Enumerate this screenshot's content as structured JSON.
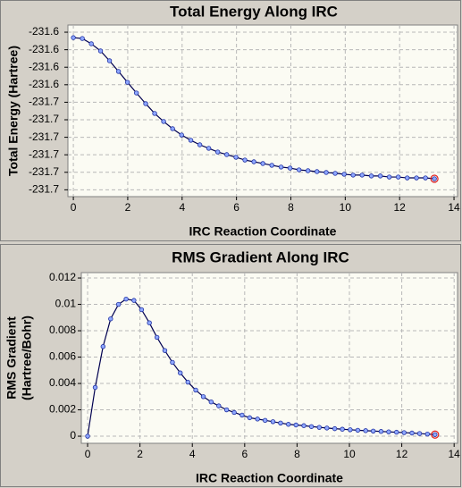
{
  "chart_data": [
    {
      "type": "line",
      "title": "Total Energy Along IRC",
      "xlabel": "IRC Reaction Coordinate",
      "ylabel": "Total Energy (Hartree)",
      "x": [
        0,
        0.33,
        0.66,
        1.0,
        1.33,
        1.66,
        1.99,
        2.32,
        2.66,
        2.99,
        3.32,
        3.65,
        3.98,
        4.32,
        4.65,
        4.98,
        5.31,
        5.64,
        5.98,
        6.31,
        6.64,
        6.97,
        7.3,
        7.64,
        7.97,
        8.3,
        8.63,
        8.96,
        9.3,
        9.63,
        9.96,
        10.29,
        10.62,
        10.96,
        11.29,
        11.62,
        11.95,
        12.28,
        12.62,
        12.95,
        13.28
      ],
      "series": [
        {
          "name": "Total Energy",
          "color": "#000050",
          "values": [
            -231.6131,
            -231.6136,
            -231.6166,
            -231.6207,
            -231.6263,
            -231.6324,
            -231.6386,
            -231.6447,
            -231.6508,
            -231.6564,
            -231.661,
            -231.6651,
            -231.6687,
            -231.6717,
            -231.6743,
            -231.6763,
            -231.6784,
            -231.6799,
            -231.6814,
            -231.683,
            -231.684,
            -231.685,
            -231.686,
            -231.687,
            -231.6876,
            -231.6886,
            -231.6891,
            -231.6896,
            -231.6901,
            -231.6906,
            -231.6911,
            -231.6916,
            -231.6916,
            -231.6921,
            -231.6921,
            -231.6927,
            -231.6927,
            -231.6932,
            -231.6932,
            -231.6932,
            -231.6937
          ]
        }
      ],
      "xlim": [
        -0.2,
        14.13
      ],
      "xticks": [
        0,
        2,
        4,
        6,
        8,
        10,
        12,
        14
      ],
      "ylim": [
        -231.7039,
        -231.6059
      ],
      "yticks": [
        {
          "value": -231.61,
          "label": "-231.6"
        },
        {
          "value": -231.62,
          "label": "-231.6"
        },
        {
          "value": -231.63,
          "label": "-231.6"
        },
        {
          "value": -231.64,
          "label": "-231.6"
        },
        {
          "value": -231.65,
          "label": "-231.7"
        },
        {
          "value": -231.66,
          "label": "-231.7"
        },
        {
          "value": -231.67,
          "label": "-231.7"
        },
        {
          "value": -231.68,
          "label": "-231.7"
        },
        {
          "value": -231.69,
          "label": "-231.7"
        },
        {
          "value": -231.7,
          "label": "-231.7"
        }
      ],
      "grid": true
    },
    {
      "type": "line",
      "title": "RMS Gradient Along IRC",
      "xlabel": "IRC Reaction Coordinate",
      "ylabel": [
        "RMS Gradient",
        "(Hartree/Bohr)"
      ],
      "x": [
        0,
        0.29,
        0.59,
        0.88,
        1.18,
        1.47,
        1.77,
        2.06,
        2.36,
        2.65,
        2.95,
        3.24,
        3.54,
        3.83,
        4.13,
        4.42,
        4.72,
        5.01,
        5.31,
        5.6,
        5.9,
        6.19,
        6.49,
        6.78,
        7.08,
        7.37,
        7.67,
        7.96,
        8.26,
        8.55,
        8.85,
        9.14,
        9.44,
        9.73,
        10.03,
        10.32,
        10.62,
        10.91,
        11.21,
        11.5,
        11.8,
        12.09,
        12.39,
        12.68,
        12.98,
        13.27
      ],
      "series": [
        {
          "name": "RMS Gradient",
          "color": "#000050",
          "values": [
            0,
            0.0037,
            0.0068,
            0.0089,
            0.01,
            0.0104,
            0.0103,
            0.0096,
            0.0086,
            0.0075,
            0.0065,
            0.0056,
            0.0048,
            0.0041,
            0.0035,
            0.003,
            0.0026,
            0.0023,
            0.002,
            0.0018,
            0.0016,
            0.0014,
            0.0013,
            0.0012,
            0.0011,
            0.001,
            0.0009,
            0.00085,
            0.0008,
            0.00073,
            0.00067,
            0.00062,
            0.00057,
            0.00053,
            0.00049,
            0.00045,
            0.00042,
            0.00039,
            0.00036,
            0.00033,
            0.0003,
            0.00027,
            0.00024,
            0.0002,
            0.00016,
            0.00012
          ]
        }
      ],
      "xlim": [
        -0.24,
        14.13
      ],
      "xticks": [
        0,
        2,
        4,
        6,
        8,
        10,
        12,
        14
      ],
      "ylim": [
        -0.00054,
        0.01241
      ],
      "yticks": [
        0,
        0.002,
        0.004,
        0.006,
        0.008,
        0.01,
        0.012
      ],
      "grid": true
    }
  ]
}
